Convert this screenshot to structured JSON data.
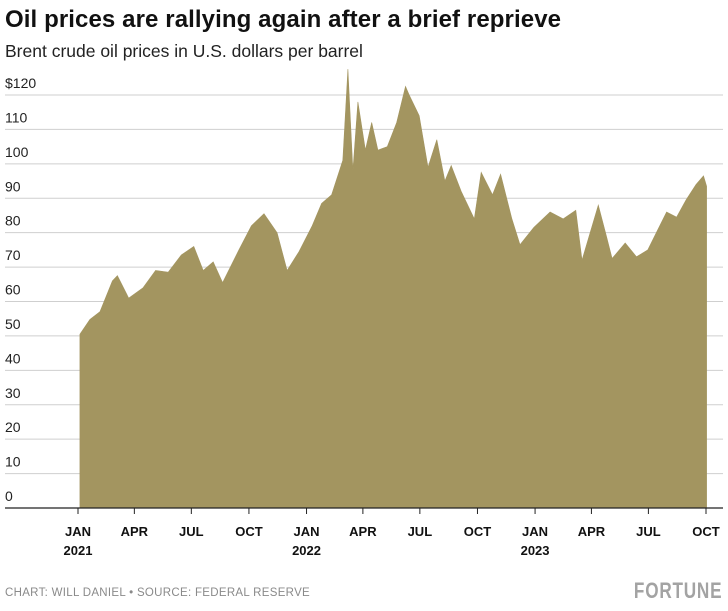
{
  "header": {
    "title": "Oil prices are rallying again after a brief reprieve",
    "subtitle": "Brent crude oil prices in U.S. dollars per barrel"
  },
  "footer": {
    "credit": "CHART: WILL DANIEL • SOURCE: FEDERAL RESERVE",
    "brand": "FORTUNE"
  },
  "chart_data": {
    "type": "area",
    "title": "Oil prices are rallying again after a brief reprieve",
    "subtitle": "Brent crude oil prices in U.S. dollars per barrel",
    "xlabel": "",
    "ylabel": "",
    "ylim": [
      0,
      120
    ],
    "yticks": [
      "$120",
      "110",
      "100",
      "90",
      "80",
      "70",
      "60",
      "50",
      "40",
      "30",
      "20",
      "10",
      "0"
    ],
    "xticks": [
      {
        "month": "JAN",
        "year": "2021",
        "date": "2021-01-01"
      },
      {
        "month": "APR",
        "year": "",
        "date": "2021-04-01"
      },
      {
        "month": "JUL",
        "year": "",
        "date": "2021-07-01"
      },
      {
        "month": "OCT",
        "year": "",
        "date": "2021-10-01"
      },
      {
        "month": "JAN",
        "year": "2022",
        "date": "2022-01-01"
      },
      {
        "month": "APR",
        "year": "",
        "date": "2022-04-01"
      },
      {
        "month": "JUL",
        "year": "",
        "date": "2022-07-01"
      },
      {
        "month": "OCT",
        "year": "",
        "date": "2022-10-01"
      },
      {
        "month": "JAN",
        "year": "2023",
        "date": "2023-01-01"
      },
      {
        "month": "APR",
        "year": "",
        "date": "2023-04-01"
      },
      {
        "month": "JUL",
        "year": "",
        "date": "2023-07-01"
      },
      {
        "month": "OCT",
        "year": "",
        "date": "2023-10-01"
      }
    ],
    "grid": true,
    "fill_color": "#a39560",
    "grid_color": "#cfcfcf",
    "axis_color": "#222222",
    "series": [
      {
        "x": [
          "2021-01-04",
          "2021-01-20",
          "2021-02-05",
          "2021-02-25",
          "2021-03-05",
          "2021-03-23",
          "2021-04-15",
          "2021-05-05",
          "2021-05-25",
          "2021-06-15",
          "2021-07-05",
          "2021-07-20",
          "2021-08-05",
          "2021-08-20",
          "2021-09-15",
          "2021-10-05",
          "2021-10-25",
          "2021-11-15",
          "2021-12-01",
          "2021-12-20",
          "2022-01-10",
          "2022-01-25",
          "2022-02-10",
          "2022-02-28",
          "2022-03-08",
          "2022-03-16",
          "2022-03-24",
          "2022-04-05",
          "2022-04-15",
          "2022-04-25",
          "2022-05-10",
          "2022-05-25",
          "2022-06-08",
          "2022-06-14",
          "2022-06-30",
          "2022-07-14",
          "2022-07-28",
          "2022-08-10",
          "2022-08-20",
          "2022-09-05",
          "2022-09-26",
          "2022-10-07",
          "2022-10-25",
          "2022-11-07",
          "2022-11-25",
          "2022-12-08",
          "2022-12-30",
          "2023-01-25",
          "2023-02-15",
          "2023-03-07",
          "2023-03-17",
          "2023-04-12",
          "2023-04-25",
          "2023-05-04",
          "2023-05-25",
          "2023-06-12",
          "2023-06-30",
          "2023-07-15",
          "2023-07-30",
          "2023-08-15",
          "2023-08-30",
          "2023-09-15",
          "2023-09-27",
          "2023-10-02"
        ],
        "values": [
          50.5,
          54.8,
          57.0,
          66.0,
          67.5,
          61.0,
          64.0,
          69.0,
          68.5,
          73.5,
          76.0,
          69.0,
          71.5,
          65.5,
          75.0,
          82.0,
          85.5,
          80.0,
          69.0,
          74.5,
          82.0,
          88.5,
          91.0,
          101.0,
          127.5,
          98.0,
          118.0,
          104.0,
          112.0,
          104.0,
          105.0,
          112.0,
          122.5,
          120.0,
          114.0,
          99.0,
          107.0,
          95.0,
          99.5,
          92.0,
          84.0,
          97.5,
          91.0,
          97.0,
          84.0,
          76.5,
          81.5,
          86.0,
          84.0,
          86.5,
          72.0,
          88.0,
          79.0,
          72.5,
          77.0,
          73.0,
          75.0,
          80.5,
          86.0,
          84.5,
          89.5,
          94.0,
          96.5,
          93.5
        ]
      }
    ]
  }
}
